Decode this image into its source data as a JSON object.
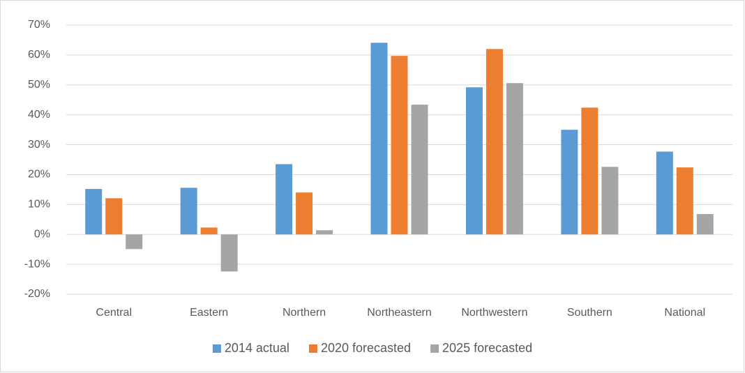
{
  "chart_data": {
    "type": "bar",
    "categories": [
      "Central",
      "Eastern",
      "Northern",
      "Northeastern",
      "Northwestern",
      "Southern",
      "National"
    ],
    "series": [
      {
        "name": "2014 actual",
        "color": "#5b9bd5",
        "values": [
          15.2,
          15.6,
          23.5,
          64.1,
          49.2,
          35.0,
          27.7
        ]
      },
      {
        "name": "2020 forecasted",
        "color": "#ed7d31",
        "values": [
          12.1,
          2.3,
          14.0,
          59.7,
          62.0,
          42.4,
          22.4
        ]
      },
      {
        "name": "2025 forecasted",
        "color": "#a5a5a5",
        "values": [
          -4.9,
          -12.4,
          1.4,
          43.4,
          50.6,
          22.6,
          6.8
        ]
      }
    ],
    "ylim": [
      -20,
      70
    ],
    "yticks": [
      {
        "value": -20,
        "label": "-20%"
      },
      {
        "value": -10,
        "label": "-10%"
      },
      {
        "value": 0,
        "label": "0%"
      },
      {
        "value": 10,
        "label": "10%"
      },
      {
        "value": 20,
        "label": "20%"
      },
      {
        "value": 30,
        "label": "30%"
      },
      {
        "value": 40,
        "label": "40%"
      },
      {
        "value": 50,
        "label": "50%"
      },
      {
        "value": 60,
        "label": "60%"
      },
      {
        "value": 70,
        "label": "70%"
      }
    ],
    "grid": true,
    "legend": "bottom"
  }
}
